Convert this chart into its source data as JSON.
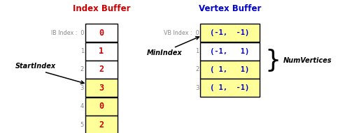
{
  "title_ib": "Index Buffer",
  "title_vb": "Vertex Buffer",
  "title_ib_color": "#cc0000",
  "title_vb_color": "#0000cc",
  "ib_values": [
    "0",
    "1",
    "2",
    "3",
    "0",
    "2"
  ],
  "ib_highlighted": [
    3,
    4,
    5
  ],
  "vb_values": [
    "(-1,  -1)",
    "(-1,   1)",
    "( 1,   1)",
    "( 1,  -1)"
  ],
  "vb_highlighted": [
    0,
    2,
    3
  ],
  "cell_color_normal": "#ffffff",
  "cell_color_highlighted": "#ffff99",
  "cell_border_color": "#000000",
  "value_color_ib": "#cc0000",
  "value_color_vb": "#0000cc",
  "index_color": "#888888",
  "label_color": "#888888",
  "start_index_label": "StartIndex",
  "min_index_label": "MinIndex",
  "num_vertices_label": "NumVertices",
  "bg_color": "#ffffff"
}
